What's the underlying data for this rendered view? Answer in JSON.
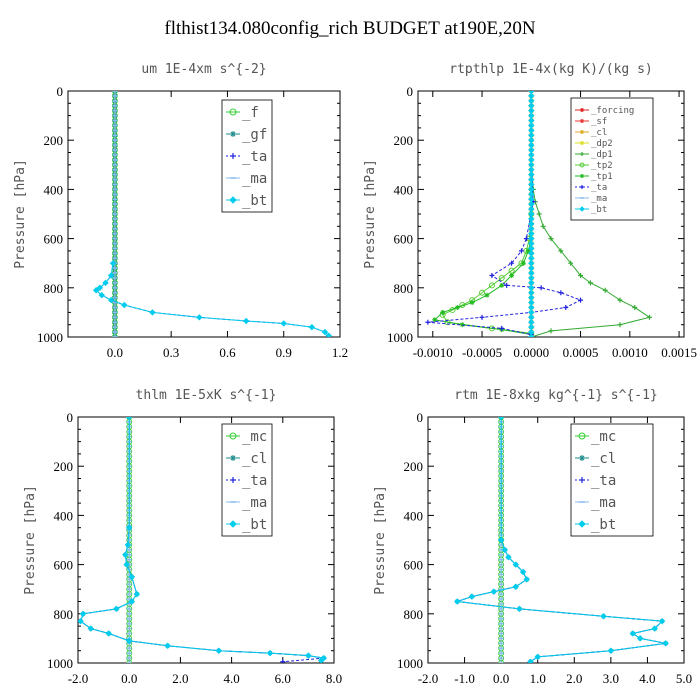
{
  "title": "flthist134.080config_rich  BUDGET at190E,20N",
  "chart_data": [
    {
      "type": "line",
      "title": "um  1E-4xm s^{-2}",
      "ylabel": "Pressure [hPa]",
      "xlim": [
        -0.25,
        1.2
      ],
      "ylim": [
        1000,
        0
      ],
      "xticks": [
        "0.0",
        "0.3",
        "0.6",
        "0.9",
        "1.2"
      ],
      "xtick_values": [
        0.0,
        0.3,
        0.6,
        0.9,
        1.2
      ],
      "yticks": [
        "0",
        "200",
        "400",
        "600",
        "800",
        "1000"
      ],
      "ytick_values": [
        0,
        200,
        400,
        600,
        800,
        1000
      ],
      "legend_location": "upper-right",
      "series": [
        {
          "name": "_f",
          "color": "#33cc33",
          "marker": "circle",
          "x": [
            0,
            0
          ],
          "y": [
            0,
            1000
          ]
        },
        {
          "name": "_gf",
          "color": "#1a8a8a",
          "marker": "star",
          "x": [
            0,
            0
          ],
          "y": [
            0,
            1000
          ]
        },
        {
          "name": "_ta",
          "color": "#2222dd",
          "marker": "plus",
          "dashed": true,
          "x": [
            -0.01,
            -0.02,
            -0.05,
            -0.08,
            -0.1,
            -0.07,
            -0.02,
            0.05,
            0.2,
            0.45,
            0.7,
            0.9,
            1.05,
            1.12,
            1.14
          ],
          "y": [
            700,
            750,
            780,
            800,
            810,
            830,
            850,
            870,
            900,
            920,
            935,
            945,
            960,
            980,
            995
          ]
        },
        {
          "name": "_ma",
          "color": "#88bbee",
          "marker": "dash",
          "x": [
            0,
            0
          ],
          "y": [
            0,
            1000
          ]
        },
        {
          "name": "_bt",
          "color": "#00ccee",
          "marker": "diamond",
          "x": [
            -0.01,
            -0.02,
            -0.05,
            -0.08,
            -0.1,
            -0.07,
            -0.02,
            0.05,
            0.2,
            0.45,
            0.7,
            0.9,
            1.05,
            1.12,
            1.14
          ],
          "y": [
            700,
            750,
            780,
            800,
            810,
            830,
            850,
            870,
            900,
            920,
            935,
            945,
            960,
            980,
            995
          ]
        }
      ]
    },
    {
      "type": "line",
      "title": "rtpthlp  1E-4x(kg K)/(kg s)",
      "ylabel": "Pressure [hPa]",
      "xlim": [
        -0.00115,
        0.00155
      ],
      "ylim": [
        1000,
        0
      ],
      "xticks": [
        "-0.0010",
        "-0.0005",
        "0.0000",
        "0.0005",
        "0.0010",
        "0.0015"
      ],
      "xtick_values": [
        -0.001,
        -0.0005,
        0.0,
        0.0005,
        0.001,
        0.0015
      ],
      "yticks": [
        "0",
        "200",
        "400",
        "600",
        "800",
        "1000"
      ],
      "ytick_values": [
        0,
        200,
        400,
        600,
        800,
        1000
      ],
      "legend_location": "upper-right",
      "series": [
        {
          "name": "_forcing",
          "color": "#dd2222",
          "marker": "star",
          "x": [
            0,
            0
          ],
          "y": [
            0,
            1000
          ]
        },
        {
          "name": "_sf",
          "color": "#ee3333",
          "marker": "star",
          "x": [
            0,
            0
          ],
          "y": [
            0,
            1000
          ]
        },
        {
          "name": "_cl",
          "color": "#ddaa22",
          "marker": "star",
          "x": [
            0,
            0
          ],
          "y": [
            0,
            1000
          ]
        },
        {
          "name": "_dp2",
          "color": "#dddd22",
          "marker": "star",
          "x": [
            0,
            0
          ],
          "y": [
            0,
            1000
          ]
        },
        {
          "name": "_dp1",
          "color": "#33aa33",
          "marker": "plus",
          "x": [
            0,
            2e-05,
            4e-05,
            8e-05,
            0.00012,
            0.0002,
            0.0003,
            0.0004,
            0.0005,
            0.0006,
            0.00075,
            0.0009,
            0.00105,
            0.0012,
            0.0009,
            0.0002,
            0
          ],
          "y": [
            300,
            400,
            450,
            500,
            550,
            600,
            650,
            700,
            750,
            780,
            810,
            850,
            880,
            920,
            950,
            975,
            1000
          ]
        },
        {
          "name": "_tp2",
          "color": "#55cc33",
          "marker": "circle",
          "x": [
            0,
            -2e-05,
            -5e-05,
            -0.0001,
            -0.0002,
            -0.0003,
            -0.0004,
            -0.0005,
            -0.0006,
            -0.0007,
            -0.0008,
            -0.0009,
            -0.00085,
            -0.0004,
            0
          ],
          "y": [
            500,
            600,
            650,
            700,
            730,
            760,
            790,
            820,
            850,
            870,
            890,
            910,
            940,
            965,
            985
          ]
        },
        {
          "name": "_tp1",
          "color": "#22bb22",
          "marker": "star",
          "x": [
            0,
            -3e-05,
            -8e-05,
            -0.0002,
            -0.0003,
            -0.00045,
            -0.0006,
            -0.00075,
            -0.0009,
            -0.00098,
            -0.0007,
            -0.0003,
            0
          ],
          "y": [
            600,
            650,
            700,
            750,
            790,
            830,
            860,
            880,
            900,
            930,
            950,
            970,
            990
          ]
        },
        {
          "name": "_ta",
          "color": "#2222dd",
          "marker": "plus",
          "dashed": true,
          "x": [
            0,
            2e-05,
            -5e-05,
            -0.0001,
            -0.0002,
            -0.0004,
            -0.00025,
            0.0001,
            0.0003,
            0.0005,
            0.00035,
            0,
            -0.0005,
            -0.00105,
            -0.0003,
            0
          ],
          "y": [
            300,
            450,
            600,
            650,
            700,
            750,
            790,
            800,
            820,
            850,
            880,
            900,
            920,
            940,
            965,
            990
          ]
        },
        {
          "name": "_ma",
          "color": "#88bbee",
          "marker": "dash",
          "x": [
            0,
            0
          ],
          "y": [
            0,
            1000
          ]
        },
        {
          "name": "_bt",
          "color": "#00ccee",
          "marker": "diamond",
          "x": [
            0,
            0
          ],
          "y": [
            0,
            1000
          ]
        }
      ]
    },
    {
      "type": "line",
      "title": "thlm  1E-5xK s^{-1}",
      "ylabel": "Pressure [hPa]",
      "xlim": [
        -2.0,
        8.0
      ],
      "ylim": [
        1000,
        0
      ],
      "xticks": [
        "-2.0",
        "0.0",
        "2.0",
        "4.0",
        "6.0",
        "8.0"
      ],
      "xtick_values": [
        -2,
        0,
        2,
        4,
        6,
        8
      ],
      "yticks": [
        "0",
        "200",
        "400",
        "600",
        "800",
        "1000"
      ],
      "ytick_values": [
        0,
        200,
        400,
        600,
        800,
        1000
      ],
      "legend_location": "upper-right",
      "series": [
        {
          "name": "_mc",
          "color": "#33cc33",
          "marker": "circle",
          "x": [
            0,
            0
          ],
          "y": [
            0,
            1000
          ]
        },
        {
          "name": "_cl",
          "color": "#1a8a8a",
          "marker": "star",
          "x": [
            0,
            0,
            -0.05,
            -0.15,
            -0.1,
            0.1,
            0.3,
            0.1,
            -0.5,
            -1.8,
            -1.9,
            -1.5,
            -0.8,
            0,
            1.5,
            3.5,
            5.5,
            7.0,
            7.6,
            7.5
          ],
          "y": [
            0,
            450,
            520,
            560,
            600,
            650,
            720,
            750,
            780,
            800,
            830,
            860,
            880,
            910,
            930,
            950,
            960,
            970,
            980,
            990
          ]
        },
        {
          "name": "_ta",
          "color": "#2222dd",
          "marker": "plus",
          "dashed": true,
          "x": [
            0,
            0,
            -0.05,
            -0.15,
            -0.1,
            0.1,
            0.3,
            0.1,
            -0.5,
            -1.8,
            -1.9,
            -1.5,
            -0.8,
            0,
            1.5,
            3.5,
            5.5,
            7.0,
            7.6,
            6.0
          ],
          "y": [
            0,
            450,
            520,
            560,
            600,
            650,
            720,
            750,
            780,
            800,
            830,
            860,
            880,
            910,
            930,
            950,
            960,
            970,
            980,
            995
          ]
        },
        {
          "name": "_ma",
          "color": "#88bbee",
          "marker": "dash",
          "x": [
            0,
            0
          ],
          "y": [
            0,
            1000
          ]
        },
        {
          "name": "_bt",
          "color": "#00ccee",
          "marker": "diamond",
          "x": [
            0,
            0,
            -0.05,
            -0.15,
            -0.1,
            0.1,
            0.3,
            0.1,
            -0.5,
            -1.8,
            -1.9,
            -1.5,
            -0.8,
            0,
            1.5,
            3.5,
            5.5,
            7.0,
            7.6,
            7.5
          ],
          "y": [
            0,
            450,
            520,
            560,
            600,
            650,
            720,
            750,
            780,
            800,
            830,
            860,
            880,
            910,
            930,
            950,
            960,
            970,
            980,
            990
          ]
        }
      ]
    },
    {
      "type": "line",
      "title": "rtm  1E-8xkg kg^{-1} s^{-1}",
      "ylabel": "Pressure [hPa]",
      "xlim": [
        -2.0,
        5.0
      ],
      "ylim": [
        1000,
        0
      ],
      "xticks": [
        "-2.0",
        "-1.0",
        "0.0",
        "1.0",
        "2.0",
        "3.0",
        "4.0",
        "5.0"
      ],
      "xtick_values": [
        -2,
        -1,
        0,
        1,
        2,
        3,
        4,
        5
      ],
      "yticks": [
        "0",
        "200",
        "400",
        "600",
        "800",
        "1000"
      ],
      "ytick_values": [
        0,
        200,
        400,
        600,
        800,
        1000
      ],
      "legend_location": "upper-right",
      "series": [
        {
          "name": "_mc",
          "color": "#33cc33",
          "marker": "circle",
          "x": [
            0,
            0
          ],
          "y": [
            0,
            1000
          ]
        },
        {
          "name": "_cl",
          "color": "#1a8a8a",
          "marker": "star",
          "x": [
            0,
            0,
            0.1,
            0.2,
            0.4,
            0.6,
            0.7,
            0.4,
            -0.2,
            -0.8,
            -1.2,
            0.5,
            2.8,
            4.4,
            4.2,
            3.6,
            3.8,
            4.5,
            3.0,
            1.0,
            0.8
          ],
          "y": [
            0,
            500,
            540,
            570,
            600,
            630,
            660,
            690,
            710,
            730,
            750,
            780,
            810,
            830,
            860,
            880,
            900,
            920,
            950,
            975,
            995
          ]
        },
        {
          "name": "_ta",
          "color": "#2222dd",
          "marker": "plus",
          "dashed": true,
          "x": [
            0,
            0,
            0.1,
            0.2,
            0.4,
            0.6,
            0.7,
            0.4,
            -0.2,
            -0.8,
            -1.2,
            0.5,
            2.8,
            4.4,
            4.2,
            3.6,
            3.8,
            4.5,
            3.0,
            1.0,
            0.8
          ],
          "y": [
            0,
            500,
            540,
            570,
            600,
            630,
            660,
            690,
            710,
            730,
            750,
            780,
            810,
            830,
            860,
            880,
            900,
            920,
            950,
            975,
            995
          ]
        },
        {
          "name": "_ma",
          "color": "#88bbee",
          "marker": "dash",
          "x": [
            0,
            0
          ],
          "y": [
            0,
            1000
          ]
        },
        {
          "name": "_bt",
          "color": "#00ccee",
          "marker": "diamond",
          "x": [
            0,
            0,
            0.1,
            0.2,
            0.4,
            0.6,
            0.7,
            0.4,
            -0.2,
            -0.8,
            -1.2,
            0.5,
            2.8,
            4.4,
            4.2,
            3.6,
            3.8,
            4.5,
            3.0,
            1.0,
            0.8
          ],
          "y": [
            0,
            500,
            540,
            570,
            600,
            630,
            660,
            690,
            710,
            730,
            750,
            780,
            810,
            830,
            860,
            880,
            900,
            920,
            950,
            975,
            995
          ]
        }
      ]
    }
  ]
}
